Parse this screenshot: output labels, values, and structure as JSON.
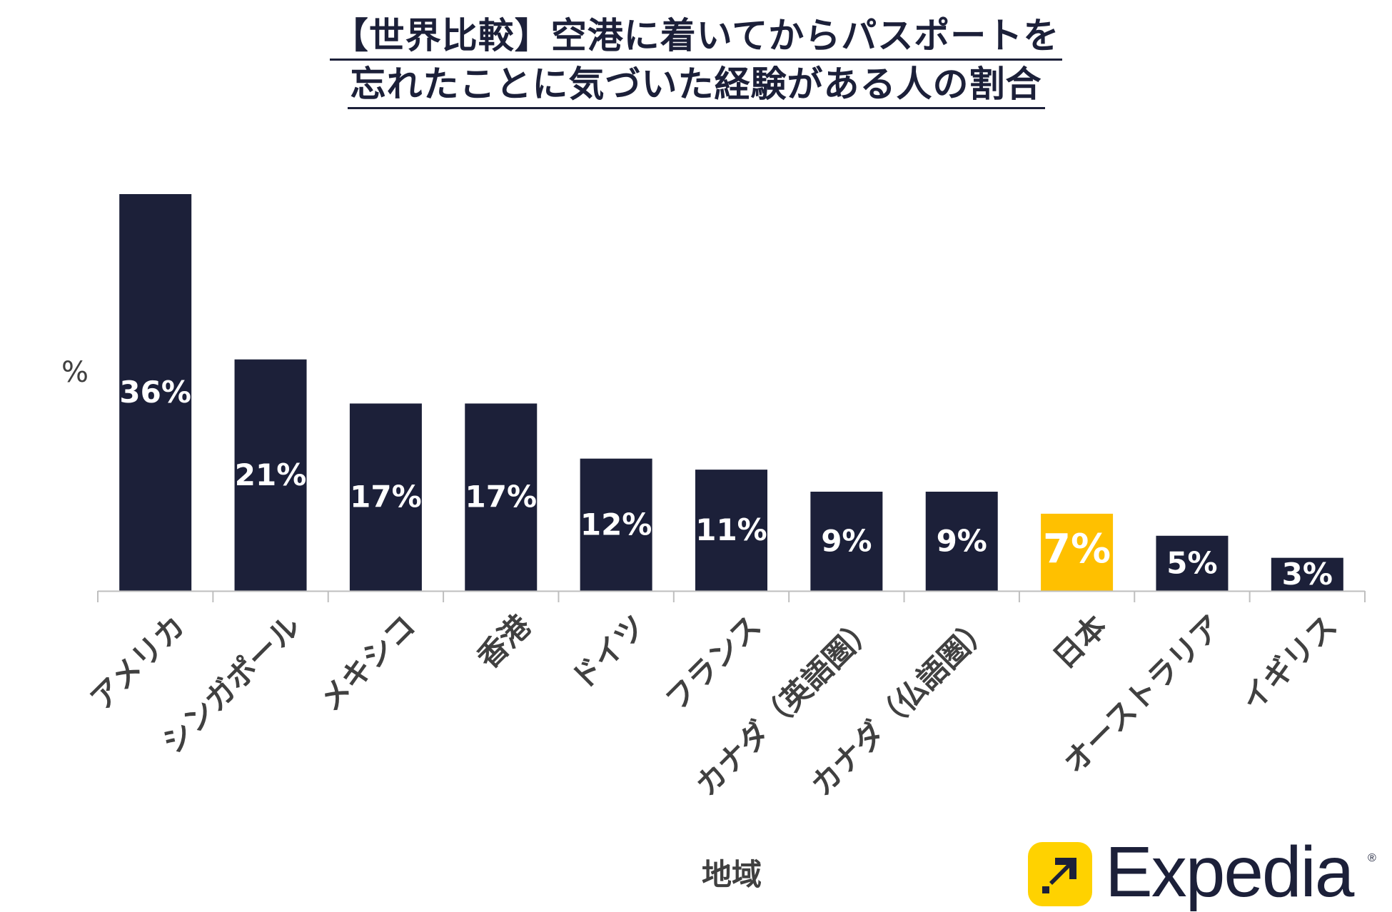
{
  "colors": {
    "bar": "#1c2039",
    "highlight": "#FFC000",
    "axis": "#bfbfbf",
    "text": "#404040",
    "label_on_bar": "#ffffff",
    "brand_yellow": "#FFD200",
    "brand_text": "#1c2039"
  },
  "chart_data": {
    "type": "bar",
    "title": "【世界比較】空港に着いてからパスポートを忘れたことに気づいた経験がある人の割合",
    "title_lines": [
      "【世界比較】空港に着いてからパスポートを",
      "忘れたことに気づいた経験がある人の割合"
    ],
    "xlabel": "地域",
    "ylabel": "%",
    "ylim": [
      0,
      36
    ],
    "grid": false,
    "categories": [
      "アメリカ",
      "シンガポール",
      "メキシコ",
      "香港",
      "ドイツ",
      "フランス",
      "カナダ（英語圏）",
      "カナダ（仏語圏）",
      "日本",
      "オーストラリア",
      "イギリス"
    ],
    "values": [
      36,
      21,
      17,
      17,
      12,
      11,
      9,
      9,
      7,
      5,
      3
    ],
    "data_labels": [
      "36%",
      "21%",
      "17%",
      "17%",
      "12%",
      "11%",
      "9%",
      "9%",
      "7%",
      "5%",
      "3%"
    ],
    "highlight_category": "日本"
  },
  "logo": {
    "name": "Expedia",
    "reg": "®"
  }
}
